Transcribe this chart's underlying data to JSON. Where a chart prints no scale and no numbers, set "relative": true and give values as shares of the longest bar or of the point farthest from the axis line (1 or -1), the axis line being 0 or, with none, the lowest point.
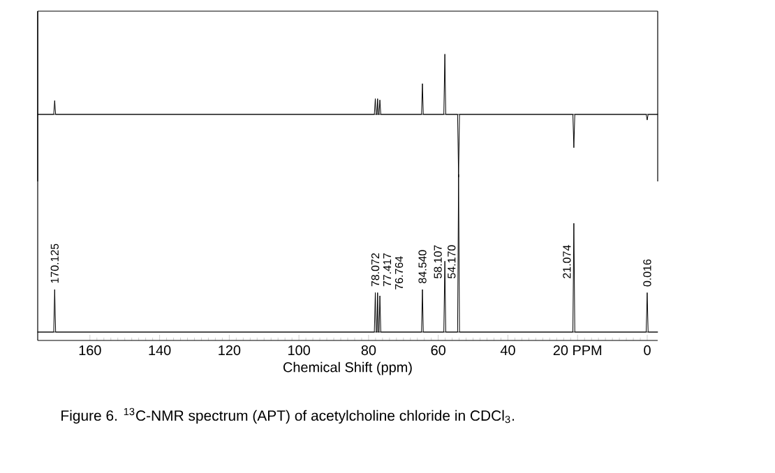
{
  "chart_data": [
    {
      "type": "line",
      "relative": true,
      "tick_labels": false,
      "color": "#000000",
      "xlim": [
        175,
        -3
      ],
      "x": [
        175,
        170.4,
        170.125,
        169.85,
        78.35,
        78.072,
        77.8,
        77.6,
        77.417,
        77.2,
        77.0,
        76.764,
        76.5,
        64.8,
        64.54,
        64.3,
        58.4,
        58.107,
        57.85,
        54.45,
        54.17,
        53.9,
        21.35,
        21.074,
        20.8,
        0.3,
        0.016,
        -0.25,
        -3
      ],
      "values": [
        0,
        0,
        0.22,
        0,
        0,
        0.25,
        0,
        0,
        0.25,
        0,
        0,
        0.23,
        0,
        0,
        0.49,
        0,
        0,
        0.96,
        0,
        0,
        -1,
        0,
        0,
        -0.53,
        0,
        0,
        -0.09,
        0,
        0
      ]
    },
    {
      "type": "line",
      "relative": true,
      "tick_labels": "x",
      "color": "#000000",
      "xlim": [
        175,
        -3
      ],
      "xticks": [
        160,
        140,
        120,
        100,
        80,
        60,
        40,
        {
          "value": 20,
          "label": "20 PPM"
        },
        0
      ],
      "xlabel": "Chemical Shift (ppm)",
      "x": [
        175,
        170.4,
        170.125,
        169.85,
        78.35,
        78.072,
        77.8,
        77.6,
        77.417,
        77.2,
        77.0,
        76.764,
        76.5,
        64.8,
        64.54,
        64.3,
        58.4,
        58.107,
        57.85,
        54.45,
        54.17,
        53.9,
        21.35,
        21.074,
        20.8,
        0.3,
        0.016,
        -0.25,
        -3
      ],
      "values": [
        0,
        0,
        0.27,
        0,
        0,
        0.25,
        0,
        0,
        0.25,
        0,
        0,
        0.23,
        0,
        0,
        0.27,
        0,
        0,
        0.45,
        0,
        0,
        1,
        0,
        0,
        0.69,
        0,
        0,
        0.25,
        0,
        0
      ],
      "annotations": [
        {
          "text": "170.125",
          "x": 170.125,
          "y": 0.27
        },
        {
          "text": "78.072",
          "x": 78.072,
          "y": 0.25
        },
        {
          "text": "77.417",
          "x": 77.417,
          "y": 0.25
        },
        {
          "text": "76.764",
          "x": 76.764,
          "y": 0.23
        },
        {
          "text": "84.540",
          "x": 64.54,
          "y": 0.27
        },
        {
          "text": "58.107",
          "x": 58.107,
          "y": 0.45
        },
        {
          "text": "54.170",
          "x": 54.17,
          "y": 0.5
        },
        {
          "text": "21.074",
          "x": 21.074,
          "y": 0.69
        },
        {
          "text": "0.016",
          "x": 0.016,
          "y": 0.25
        },
        "Figure 6. $^{13}$C-NMR spectrum (APT) of acetylcholine chloride in CDCl$_{3}$."
      ]
    }
  ]
}
